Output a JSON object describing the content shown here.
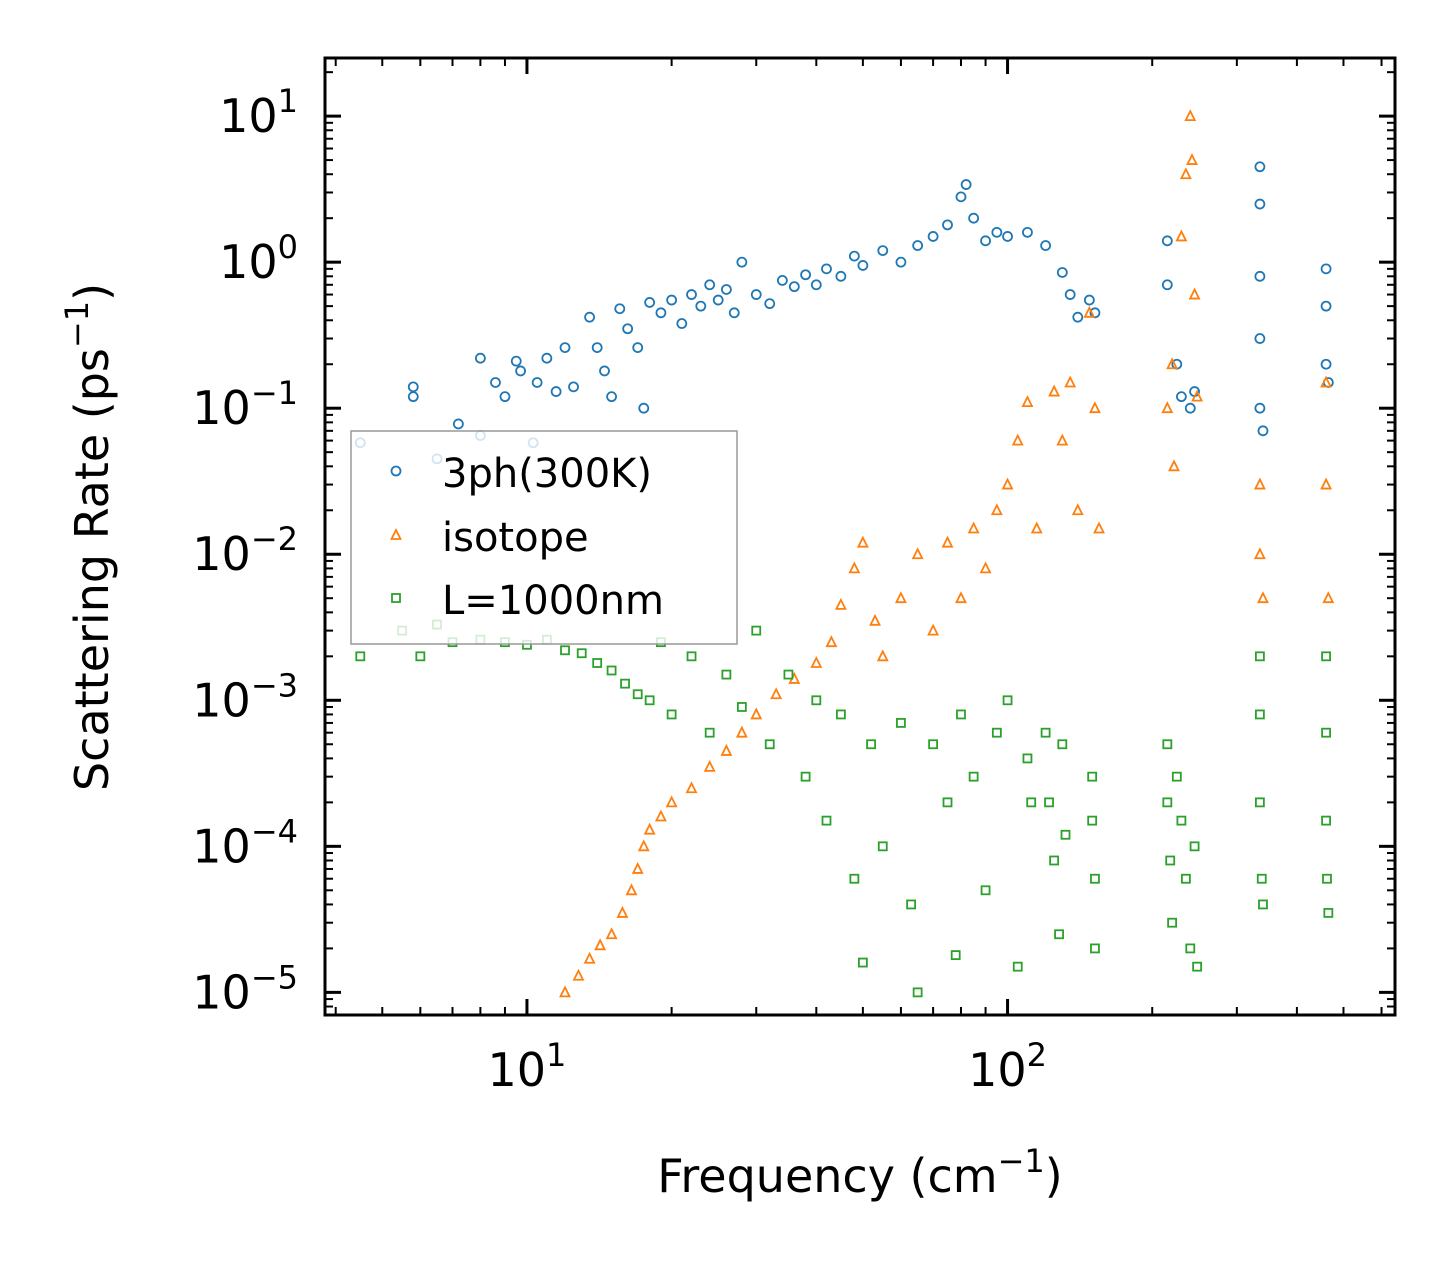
{
  "chart_data": {
    "type": "scatter",
    "title": "",
    "xlabel": "Frequency (cm⁻¹)",
    "ylabel": "Scattering Rate (ps⁻¹)",
    "xlabel_parts": {
      "base": "Frequency (cm",
      "sup": "−1",
      "tail": ")"
    },
    "ylabel_parts": {
      "base": "Scattering Rate (ps",
      "sup": "−1",
      "tail": ")"
    },
    "xscale": "log",
    "yscale": "log",
    "xlim": [
      3.8,
      640
    ],
    "ylim": [
      7e-06,
      25
    ],
    "x_ticks": [
      {
        "value": 10,
        "base": "10",
        "exp": "1"
      },
      {
        "value": 100,
        "base": "10",
        "exp": "2"
      }
    ],
    "y_ticks": [
      {
        "value": 1e-05,
        "base": "10",
        "exp": "−5"
      },
      {
        "value": 0.0001,
        "base": "10",
        "exp": "−4"
      },
      {
        "value": 0.001,
        "base": "10",
        "exp": "−3"
      },
      {
        "value": 0.01,
        "base": "10",
        "exp": "−2"
      },
      {
        "value": 0.1,
        "base": "10",
        "exp": "−1"
      },
      {
        "value": 1,
        "base": "10",
        "exp": "0"
      },
      {
        "value": 10,
        "base": "10",
        "exp": "1"
      }
    ],
    "legend": {
      "placement": "center-left"
    },
    "series": [
      {
        "name": "3ph(300K)",
        "marker": "circle",
        "color": "#1f77b4",
        "points": [
          [
            4.5,
            0.058
          ],
          [
            5.8,
            0.14
          ],
          [
            5.8,
            0.12
          ],
          [
            6.5,
            0.045
          ],
          [
            7.2,
            0.078
          ],
          [
            8.0,
            0.22
          ],
          [
            8.0,
            0.065
          ],
          [
            8.6,
            0.15
          ],
          [
            9.0,
            0.12
          ],
          [
            9.5,
            0.21
          ],
          [
            9.7,
            0.18
          ],
          [
            10.3,
            0.058
          ],
          [
            10.5,
            0.15
          ],
          [
            11.0,
            0.22
          ],
          [
            11.5,
            0.13
          ],
          [
            12.0,
            0.26
          ],
          [
            12.5,
            0.14
          ],
          [
            13.5,
            0.42
          ],
          [
            14.0,
            0.26
          ],
          [
            14.5,
            0.18
          ],
          [
            15.0,
            0.12
          ],
          [
            15.6,
            0.48
          ],
          [
            16.2,
            0.35
          ],
          [
            17.0,
            0.26
          ],
          [
            17.5,
            0.1
          ],
          [
            18.0,
            0.53
          ],
          [
            19.0,
            0.45
          ],
          [
            20.0,
            0.55
          ],
          [
            21.0,
            0.38
          ],
          [
            22.0,
            0.6
          ],
          [
            23.0,
            0.5
          ],
          [
            24.0,
            0.7
          ],
          [
            25.0,
            0.55
          ],
          [
            26.0,
            0.65
          ],
          [
            27.0,
            0.45
          ],
          [
            28.0,
            1.0
          ],
          [
            30.0,
            0.6
          ],
          [
            32.0,
            0.52
          ],
          [
            34.0,
            0.75
          ],
          [
            36.0,
            0.68
          ],
          [
            38.0,
            0.82
          ],
          [
            40.0,
            0.7
          ],
          [
            42.0,
            0.9
          ],
          [
            45.0,
            0.8
          ],
          [
            48.0,
            1.1
          ],
          [
            50.0,
            0.95
          ],
          [
            55.0,
            1.2
          ],
          [
            60.0,
            1.0
          ],
          [
            65.0,
            1.3
          ],
          [
            70.0,
            1.5
          ],
          [
            75.0,
            1.8
          ],
          [
            80.0,
            2.8
          ],
          [
            82.0,
            3.4
          ],
          [
            85.0,
            2.0
          ],
          [
            90.0,
            1.4
          ],
          [
            95.0,
            1.6
          ],
          [
            100.0,
            1.5
          ],
          [
            110.0,
            1.6
          ],
          [
            120.0,
            1.3
          ],
          [
            130.0,
            0.85
          ],
          [
            135.0,
            0.6
          ],
          [
            140.0,
            0.42
          ],
          [
            148.0,
            0.55
          ],
          [
            152.0,
            0.45
          ],
          [
            215.0,
            1.4
          ],
          [
            215.0,
            0.7
          ],
          [
            225.0,
            0.2
          ],
          [
            230.0,
            0.12
          ],
          [
            240.0,
            0.1
          ],
          [
            245.0,
            0.13
          ],
          [
            335.0,
            4.5
          ],
          [
            335.0,
            2.5
          ],
          [
            335.0,
            0.8
          ],
          [
            335.0,
            0.3
          ],
          [
            335.0,
            0.1
          ],
          [
            340.0,
            0.07
          ],
          [
            460.0,
            0.9
          ],
          [
            460.0,
            0.5
          ],
          [
            460.0,
            0.2
          ],
          [
            465.0,
            0.15
          ]
        ]
      },
      {
        "name": "isotope",
        "marker": "triangle",
        "color": "#ff7f0e",
        "points": [
          [
            12.0,
            1e-05
          ],
          [
            12.8,
            1.3e-05
          ],
          [
            13.5,
            1.7e-05
          ],
          [
            14.2,
            2.1e-05
          ],
          [
            15.0,
            2.5e-05
          ],
          [
            15.8,
            3.5e-05
          ],
          [
            16.5,
            5e-05
          ],
          [
            17.0,
            7e-05
          ],
          [
            17.5,
            0.0001
          ],
          [
            18.0,
            0.00013
          ],
          [
            19.0,
            0.00016
          ],
          [
            20.0,
            0.0002
          ],
          [
            22.0,
            0.00025
          ],
          [
            24.0,
            0.00035
          ],
          [
            26.0,
            0.00045
          ],
          [
            28.0,
            0.0006
          ],
          [
            30.0,
            0.0008
          ],
          [
            33.0,
            0.0011
          ],
          [
            36.0,
            0.0014
          ],
          [
            40.0,
            0.0018
          ],
          [
            43.0,
            0.0025
          ],
          [
            45.0,
            0.0045
          ],
          [
            48.0,
            0.008
          ],
          [
            50.0,
            0.012
          ],
          [
            53.0,
            0.0035
          ],
          [
            55.0,
            0.002
          ],
          [
            60.0,
            0.005
          ],
          [
            65.0,
            0.01
          ],
          [
            70.0,
            0.003
          ],
          [
            75.0,
            0.012
          ],
          [
            80.0,
            0.005
          ],
          [
            85.0,
            0.015
          ],
          [
            90.0,
            0.008
          ],
          [
            95.0,
            0.02
          ],
          [
            100.0,
            0.03
          ],
          [
            105.0,
            0.06
          ],
          [
            110.0,
            0.11
          ],
          [
            115.0,
            0.015
          ],
          [
            125.0,
            0.13
          ],
          [
            130.0,
            0.06
          ],
          [
            135.0,
            0.15
          ],
          [
            140.0,
            0.02
          ],
          [
            148.0,
            0.45
          ],
          [
            152.0,
            0.1
          ],
          [
            155.0,
            0.015
          ],
          [
            215.0,
            0.1
          ],
          [
            220.0,
            0.2
          ],
          [
            222.0,
            0.04
          ],
          [
            230.0,
            1.5
          ],
          [
            235.0,
            4.0
          ],
          [
            240.0,
            10.0
          ],
          [
            242.0,
            5.0
          ],
          [
            245.0,
            0.6
          ],
          [
            248.0,
            0.12
          ],
          [
            335.0,
            0.03
          ],
          [
            335.0,
            0.01
          ],
          [
            340.0,
            0.005
          ],
          [
            460.0,
            0.15
          ],
          [
            460.0,
            0.03
          ],
          [
            465.0,
            0.005
          ]
        ]
      },
      {
        "name": "L=1000nm",
        "marker": "square",
        "color": "#2ca02c",
        "points": [
          [
            4.5,
            0.002
          ],
          [
            5.5,
            0.003
          ],
          [
            6.0,
            0.002
          ],
          [
            6.5,
            0.0033
          ],
          [
            7.0,
            0.0025
          ],
          [
            8.0,
            0.0026
          ],
          [
            9.0,
            0.0025
          ],
          [
            10.0,
            0.0024
          ],
          [
            11.0,
            0.0026
          ],
          [
            12.0,
            0.0022
          ],
          [
            13.0,
            0.0021
          ],
          [
            14.0,
            0.0018
          ],
          [
            15.0,
            0.0016
          ],
          [
            16.0,
            0.0013
          ],
          [
            17.0,
            0.0011
          ],
          [
            18.0,
            0.001
          ],
          [
            19.0,
            0.0025
          ],
          [
            20.0,
            0.0008
          ],
          [
            22.0,
            0.002
          ],
          [
            24.0,
            0.0006
          ],
          [
            26.0,
            0.0015
          ],
          [
            28.0,
            0.0009
          ],
          [
            30.0,
            0.003
          ],
          [
            32.0,
            0.0005
          ],
          [
            35.0,
            0.0015
          ],
          [
            38.0,
            0.0003
          ],
          [
            40.0,
            0.001
          ],
          [
            42.0,
            0.00015
          ],
          [
            45.0,
            0.0008
          ],
          [
            48.0,
            6e-05
          ],
          [
            50.0,
            1.6e-05
          ],
          [
            52.0,
            0.0005
          ],
          [
            55.0,
            0.0001
          ],
          [
            60.0,
            0.0007
          ],
          [
            63.0,
            4e-05
          ],
          [
            65.0,
            1e-05
          ],
          [
            70.0,
            0.0005
          ],
          [
            75.0,
            0.0002
          ],
          [
            78.0,
            1.8e-05
          ],
          [
            80.0,
            0.0008
          ],
          [
            85.0,
            0.0003
          ],
          [
            90.0,
            5e-05
          ],
          [
            95.0,
            0.0006
          ],
          [
            100.0,
            0.001
          ],
          [
            105.0,
            1.5e-05
          ],
          [
            110.0,
            0.0004
          ],
          [
            112.0,
            0.0002
          ],
          [
            120.0,
            0.0006
          ],
          [
            122.0,
            0.0002
          ],
          [
            125.0,
            8e-05
          ],
          [
            128.0,
            2.5e-05
          ],
          [
            130.0,
            0.0005
          ],
          [
            132.0,
            0.00012
          ],
          [
            150.0,
            0.0003
          ],
          [
            150.0,
            0.00015
          ],
          [
            152.0,
            6e-05
          ],
          [
            152.0,
            2e-05
          ],
          [
            215.0,
            0.0005
          ],
          [
            215.0,
            0.0002
          ],
          [
            218.0,
            8e-05
          ],
          [
            220.0,
            3e-05
          ],
          [
            225.0,
            0.0003
          ],
          [
            230.0,
            0.00015
          ],
          [
            235.0,
            6e-05
          ],
          [
            240.0,
            2e-05
          ],
          [
            245.0,
            0.0001
          ],
          [
            248.0,
            1.5e-05
          ],
          [
            335.0,
            0.002
          ],
          [
            335.0,
            0.0008
          ],
          [
            335.0,
            0.0002
          ],
          [
            338.0,
            6e-05
          ],
          [
            340.0,
            4e-05
          ],
          [
            460.0,
            0.002
          ],
          [
            460.0,
            0.0006
          ],
          [
            460.0,
            0.00015
          ],
          [
            462.0,
            6e-05
          ],
          [
            465.0,
            3.5e-05
          ]
        ]
      }
    ]
  },
  "colors": {
    "series_3ph": "#1f77b4",
    "series_isotope": "#ff7f0e",
    "series_boundary": "#2ca02c",
    "axis": "#000000",
    "legend_border": "#999999"
  }
}
